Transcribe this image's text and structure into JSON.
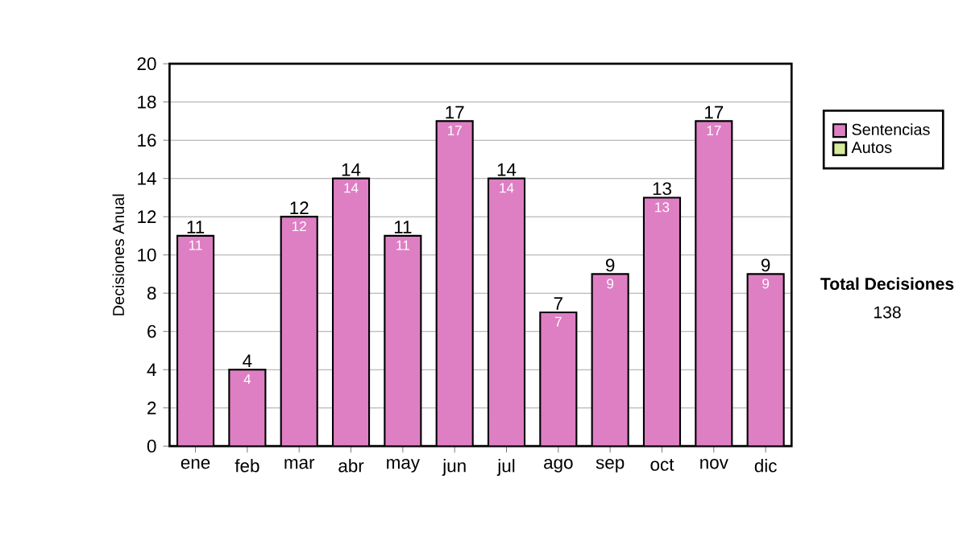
{
  "chart_data": {
    "type": "bar",
    "ylabel": "Decisiones Anual",
    "categories": [
      "ene",
      "feb",
      "mar",
      "abr",
      "may",
      "jun",
      "jul",
      "ago",
      "sep",
      "oct",
      "nov",
      "dic"
    ],
    "series": [
      {
        "name": "Sentencias",
        "color": "#de7fc4",
        "values": [
          11,
          4,
          12,
          14,
          11,
          17,
          14,
          7,
          9,
          13,
          17,
          9
        ],
        "value_labels": [
          "11",
          "4",
          "12",
          "14",
          "11",
          "17",
          "14",
          "7",
          "9",
          "13",
          "17",
          "9"
        ]
      },
      {
        "name": "Autos",
        "color": "#d6ec9c",
        "values": [
          null,
          null,
          null,
          null,
          null,
          null,
          null,
          null,
          null,
          null,
          null,
          null
        ]
      }
    ],
    "ylim": [
      0,
      20
    ],
    "yticks": [
      0,
      2,
      4,
      6,
      8,
      10,
      12,
      14,
      16,
      18,
      20
    ],
    "grid": "y",
    "legend": "right",
    "totals": [
      "11",
      "4",
      "12",
      "14",
      "11",
      "17",
      "14",
      "7",
      "9",
      "13",
      "17",
      "9"
    ],
    "annotations": [
      "**Total Decisiones**",
      "138"
    ]
  }
}
